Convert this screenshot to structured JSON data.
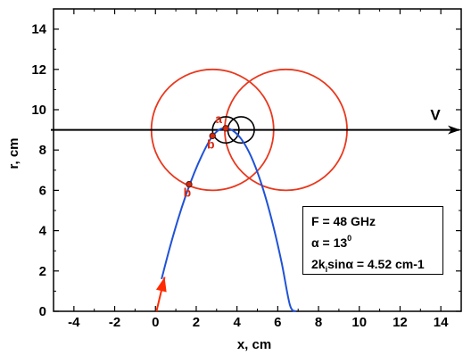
{
  "chart_data": {
    "type": "diagram",
    "xlabel": "x, cm",
    "ylabel": "r, cm",
    "xlim": [
      -5,
      15
    ],
    "ylim": [
      0,
      15
    ],
    "x_ticks": [
      "-4",
      "-2",
      "0",
      "2",
      "4",
      "6",
      "8",
      "10",
      "12",
      "14"
    ],
    "x_tick_values": [
      -4,
      -2,
      0,
      2,
      4,
      6,
      8,
      10,
      12,
      14
    ],
    "y_ticks": [
      "0",
      "2",
      "4",
      "6",
      "8",
      "10",
      "12",
      "14"
    ],
    "y_tick_values": [
      0,
      2,
      4,
      6,
      8,
      10,
      12,
      14
    ],
    "trajectory": {
      "color": "#1f52d6",
      "x": [
        0.3,
        0.7,
        1.1,
        1.5,
        1.9,
        2.3,
        2.7,
        3.1,
        3.45,
        3.8,
        4.2,
        4.6,
        5.0,
        5.4,
        5.8,
        6.2,
        6.6,
        6.9
      ],
      "y": [
        1.6,
        3.14,
        4.54,
        5.78,
        6.86,
        7.78,
        8.54,
        8.99,
        9.08,
        8.96,
        8.56,
        7.88,
        6.91,
        5.66,
        4.15,
        2.37,
        0.3,
        0.0
      ]
    },
    "beam_line": {
      "y": 9.0,
      "label": "V",
      "color": "#000000"
    },
    "launch_arrow": {
      "from": [
        0.05,
        0.0
      ],
      "to": [
        0.45,
        1.7
      ],
      "color": "#ff2a00"
    },
    "circles": [
      {
        "cx": 2.8,
        "cy": 9.0,
        "r": 3.0,
        "color": "#e8381e"
      },
      {
        "cx": 6.4,
        "cy": 9.0,
        "r": 3.0,
        "color": "#e8381e"
      },
      {
        "cx": 3.45,
        "cy": 9.0,
        "r": 0.65,
        "color": "#000000"
      },
      {
        "cx": 4.2,
        "cy": 9.0,
        "r": 0.65,
        "color": "#000000"
      }
    ],
    "points": [
      {
        "label": "a",
        "x": 3.45,
        "y": 9.08
      },
      {
        "label": "b",
        "x": 2.8,
        "y": 8.7
      },
      {
        "label": "b",
        "x": 1.65,
        "y": 6.3
      }
    ]
  },
  "legend_box": {
    "freq": "F = 48 GHz",
    "alpha_symbol": "α",
    "alpha_eq": " = 13",
    "alpha_sup": "0",
    "formula_pre": "2k",
    "formula_sub": "i",
    "formula_post": "sinα = 4.52 cm-1"
  },
  "colors": {
    "trajectory": "#1f52d6",
    "circle_red": "#e8381e",
    "point_label": "#d42a10",
    "axes": "#000000"
  }
}
